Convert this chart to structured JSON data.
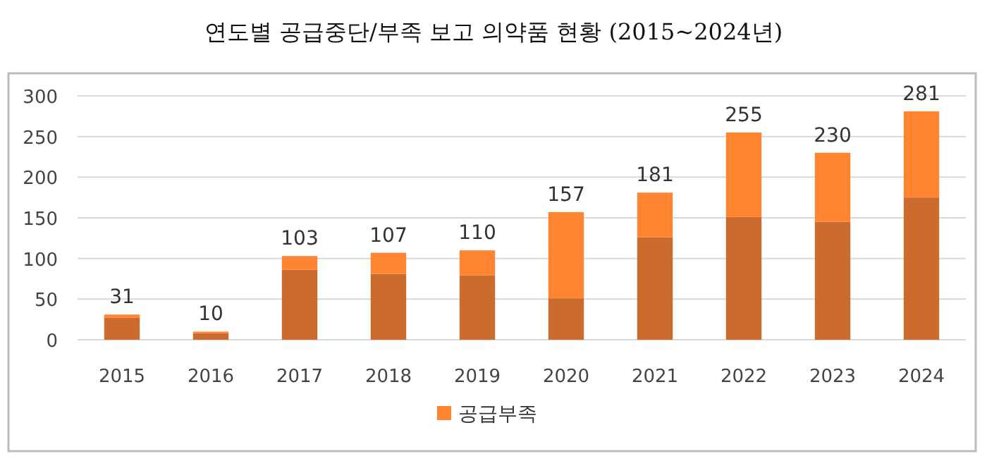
{
  "chart_data": {
    "type": "bar",
    "title": "연도별 공급중단/부족 보고 의약품 현황 (2015~2024년)",
    "stacked": true,
    "categories": [
      "2015",
      "2016",
      "2017",
      "2018",
      "2019",
      "2020",
      "2021",
      "2022",
      "2023",
      "2024"
    ],
    "series": [
      {
        "color": "#cc6b2e",
        "values": [
          27,
          8,
          86,
          81,
          79,
          51,
          126,
          151,
          145,
          175
        ]
      },
      {
        "name": "공급부족",
        "color": "#ff8533",
        "values": [
          4,
          2,
          17,
          26,
          31,
          106,
          55,
          104,
          85,
          106
        ]
      }
    ],
    "totals": [
      "31",
      "10",
      "103",
      "107",
      "110",
      "157",
      "181",
      "255",
      "230",
      "281"
    ],
    "ylim": [
      0,
      300
    ],
    "yticks": [
      0,
      50,
      100,
      150,
      200,
      250,
      300
    ],
    "grid": "y",
    "legend": "bottom"
  }
}
